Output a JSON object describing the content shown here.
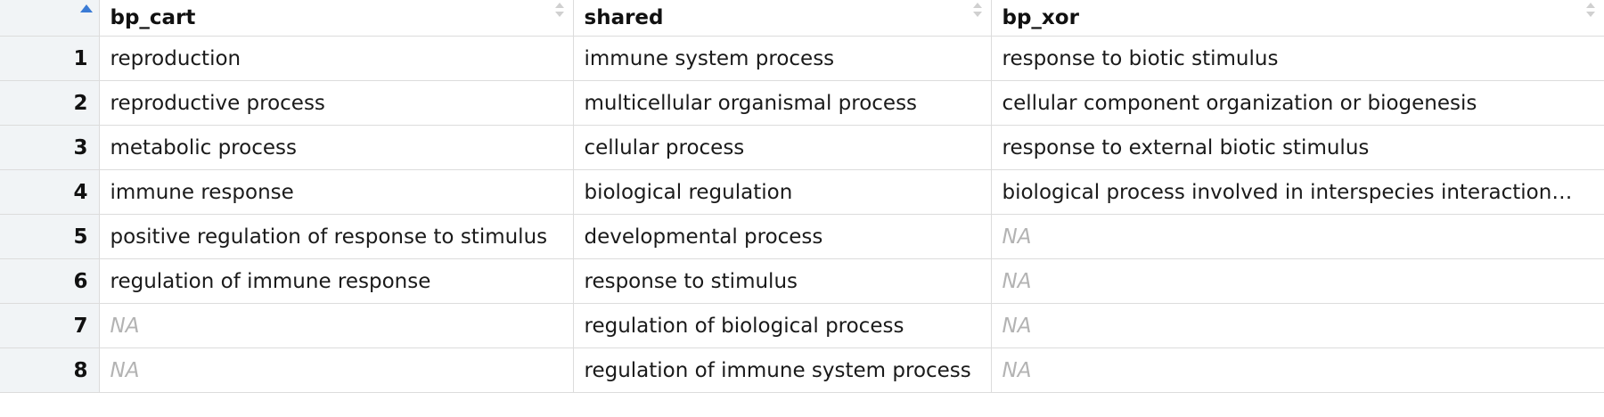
{
  "table": {
    "index_header": "",
    "columns": [
      {
        "name": "bp_cart",
        "sort": "none"
      },
      {
        "name": "shared",
        "sort": "none"
      },
      {
        "name": "bp_xor",
        "sort": "none"
      }
    ],
    "index_sort": "ascending",
    "rows": [
      {
        "index": "1",
        "bp_cart": "reproduction",
        "shared": "immune system process",
        "bp_xor": "response to biotic stimulus"
      },
      {
        "index": "2",
        "bp_cart": "reproductive process",
        "shared": "multicellular organismal process",
        "bp_xor": "cellular component organization or biogenesis"
      },
      {
        "index": "3",
        "bp_cart": "metabolic process",
        "shared": "cellular process",
        "bp_xor": "response to external biotic stimulus"
      },
      {
        "index": "4",
        "bp_cart": "immune response",
        "shared": "biological regulation",
        "bp_xor": "biological process involved in interspecies interaction…"
      },
      {
        "index": "5",
        "bp_cart": "positive regulation of response to stimulus",
        "shared": "developmental process",
        "bp_xor": "NA"
      },
      {
        "index": "6",
        "bp_cart": "regulation of immune response",
        "shared": "response to stimulus",
        "bp_xor": "NA"
      },
      {
        "index": "7",
        "bp_cart": "NA",
        "shared": "regulation of biological process",
        "bp_xor": "NA"
      },
      {
        "index": "8",
        "bp_cart": "NA",
        "shared": "regulation of immune system process",
        "bp_xor": "NA"
      }
    ]
  },
  "colors": {
    "sort_active": "#3a7bd5",
    "sort_inactive": "#d0d0d0",
    "na_text": "#b3b3b3",
    "index_background": "#f1f4f6",
    "grid_border": "#dcdcdc"
  },
  "icons": {
    "index_sort": "sort-ascending-icon",
    "column_sort": "sort-both-icon"
  }
}
